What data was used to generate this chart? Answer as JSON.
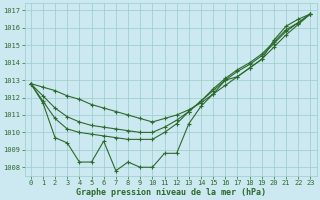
{
  "title": "Graphe pression niveau de la mer (hPa)",
  "hours": [
    0,
    1,
    2,
    3,
    4,
    5,
    6,
    7,
    8,
    9,
    10,
    11,
    12,
    13,
    14,
    15,
    16,
    17,
    18,
    19,
    20,
    21,
    22,
    23
  ],
  "line_wiggly": [
    1012.8,
    1011.7,
    1009.7,
    1009.4,
    1008.3,
    1008.3,
    1009.5,
    1007.8,
    1008.3,
    1008.0,
    1008.0,
    1008.8,
    1008.8,
    1010.5,
    1011.5,
    1012.2,
    1013.0,
    1013.2,
    1013.7,
    1014.2,
    1015.3,
    1016.1,
    1016.5,
    1016.8
  ],
  "line_smooth1": [
    1012.8,
    1011.8,
    1010.8,
    1010.2,
    1010.0,
    1009.9,
    1009.8,
    1009.7,
    1009.6,
    1009.6,
    1009.6,
    1010.0,
    1010.5,
    1011.2,
    1011.8,
    1012.5,
    1013.1,
    1013.6,
    1014.0,
    1014.5,
    1015.2,
    1015.9,
    1016.3,
    1016.8
  ],
  "line_smooth2": [
    1012.8,
    1012.1,
    1011.4,
    1010.9,
    1010.6,
    1010.4,
    1010.3,
    1010.2,
    1010.1,
    1010.0,
    1010.0,
    1010.3,
    1010.7,
    1011.2,
    1011.8,
    1012.4,
    1013.0,
    1013.5,
    1013.9,
    1014.4,
    1015.1,
    1015.8,
    1016.3,
    1016.8
  ],
  "line_straight": [
    1012.8,
    1012.6,
    1012.4,
    1012.1,
    1011.9,
    1011.6,
    1011.4,
    1011.2,
    1011.0,
    1010.8,
    1010.6,
    1010.8,
    1011.0,
    1011.3,
    1011.7,
    1012.2,
    1012.7,
    1013.2,
    1013.7,
    1014.2,
    1014.9,
    1015.6,
    1016.2,
    1016.8
  ],
  "line_color": "#2d6a2d",
  "marker": "+",
  "marker_size": 3,
  "marker_lw": 0.8,
  "line_width": 0.8,
  "bg_color": "#cce8f0",
  "grid_color": "#99cccc",
  "ylim": [
    1007.5,
    1017.4
  ],
  "yticks": [
    1008,
    1009,
    1010,
    1011,
    1012,
    1013,
    1014,
    1015,
    1016,
    1017
  ],
  "tick_fontsize": 5,
  "label_fontsize": 6,
  "text_color": "#2d6a2d"
}
